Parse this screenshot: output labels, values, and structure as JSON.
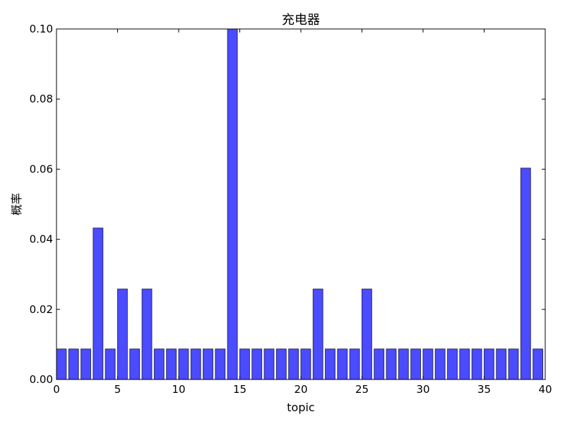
{
  "chart_data": {
    "type": "bar",
    "title": "充电器",
    "xlabel": "topic",
    "ylabel": "概率",
    "xlim": [
      0,
      40
    ],
    "ylim": [
      0,
      0.1
    ],
    "x_ticks": [
      "0",
      "5",
      "10",
      "15",
      "20",
      "25",
      "30",
      "35",
      "40"
    ],
    "y_ticks": [
      "0.00",
      "0.02",
      "0.04",
      "0.06",
      "0.08",
      "0.10"
    ],
    "bar_color": "#4b4bff",
    "bar_edge_color": "#2a2a6a",
    "grid": false,
    "categories": [
      0,
      1,
      2,
      3,
      4,
      5,
      6,
      7,
      8,
      9,
      10,
      11,
      12,
      13,
      14,
      15,
      16,
      17,
      18,
      19,
      20,
      21,
      22,
      23,
      24,
      25,
      26,
      27,
      28,
      29,
      30,
      31,
      32,
      33,
      34,
      35,
      36,
      37,
      38,
      39
    ],
    "values": [
      0.0087,
      0.0087,
      0.0087,
      0.0432,
      0.0087,
      0.0258,
      0.0087,
      0.0258,
      0.0087,
      0.0087,
      0.0087,
      0.0087,
      0.0087,
      0.0087,
      0.1,
      0.0087,
      0.0087,
      0.0087,
      0.0087,
      0.0087,
      0.0087,
      0.0258,
      0.0087,
      0.0087,
      0.0087,
      0.0258,
      0.0087,
      0.0087,
      0.0087,
      0.0087,
      0.0087,
      0.0087,
      0.0087,
      0.0087,
      0.0087,
      0.0087,
      0.0087,
      0.0087,
      0.0603,
      0.0087
    ]
  }
}
